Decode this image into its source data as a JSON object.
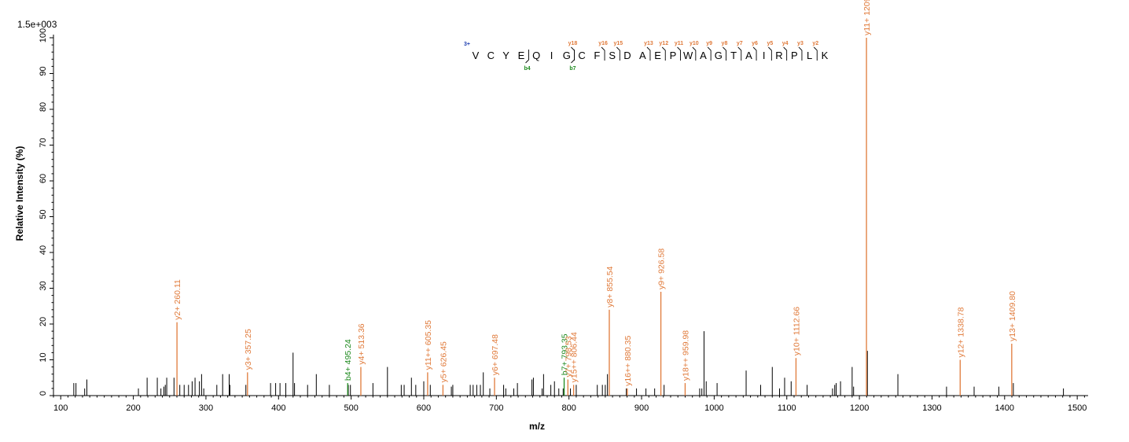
{
  "chart_data": {
    "type": "bar",
    "subtype": "mass-spectrum",
    "scale_label": "1.5e+003",
    "xlabel": "m/z",
    "ylabel": "Relative   Intensity (%)",
    "xlim": [
      90,
      1515
    ],
    "ylim": [
      0,
      100
    ],
    "x_ticks": [
      100,
      200,
      300,
      400,
      500,
      600,
      700,
      800,
      900,
      1000,
      1100,
      1200,
      1300,
      1400,
      1500
    ],
    "y_ticks": [
      0,
      10,
      20,
      30,
      40,
      50,
      60,
      70,
      80,
      90,
      100
    ],
    "colors": {
      "y_ion": "#e07a3a",
      "b_ion": "#1f8a1f",
      "charge": "#1f3fb0",
      "other": "#000000"
    },
    "charge_state": "3+",
    "sequence": [
      "V",
      "C",
      "Y",
      "E",
      "Q",
      "I",
      "G",
      "C",
      "F",
      "S",
      "D",
      "A",
      "E",
      "P",
      "W",
      "A",
      "G",
      "T",
      "A",
      "I",
      "R",
      "P",
      "L",
      "K"
    ],
    "y_ion_marks": [
      {
        "after_index": 6,
        "label": "y18"
      },
      {
        "after_index": 8,
        "label": "y16"
      },
      {
        "after_index": 9,
        "label": "y15"
      },
      {
        "after_index": 11,
        "label": "y13"
      },
      {
        "after_index": 12,
        "label": "y12"
      },
      {
        "after_index": 13,
        "label": "y11"
      },
      {
        "after_index": 14,
        "label": "y10"
      },
      {
        "after_index": 15,
        "label": "y9"
      },
      {
        "after_index": 16,
        "label": "y8"
      },
      {
        "after_index": 17,
        "label": "y7"
      },
      {
        "after_index": 18,
        "label": "y6"
      },
      {
        "after_index": 19,
        "label": "y5"
      },
      {
        "after_index": 20,
        "label": "y4"
      },
      {
        "after_index": 21,
        "label": "y3"
      },
      {
        "after_index": 22,
        "label": "y2"
      }
    ],
    "b_ion_marks": [
      {
        "after_index": 3,
        "label": "b4"
      },
      {
        "after_index": 6,
        "label": "b7"
      }
    ],
    "annotated_peaks": [
      {
        "mz": 260.11,
        "intensity": 20.5,
        "label": "y2+ 260.11",
        "ion": "y"
      },
      {
        "mz": 357.25,
        "intensity": 6.5,
        "label": "y3+ 357.25",
        "ion": "y"
      },
      {
        "mz": 495.24,
        "intensity": 3.5,
        "label": "b4+ 495.24",
        "ion": "b"
      },
      {
        "mz": 513.36,
        "intensity": 8.0,
        "label": "y4+ 513.36",
        "ion": "y"
      },
      {
        "mz": 605.35,
        "intensity": 6.5,
        "label": "y11++ 605.35",
        "ion": "y"
      },
      {
        "mz": 626.45,
        "intensity": 3.0,
        "label": "y5+ 626.45",
        "ion": "y"
      },
      {
        "mz": 697.48,
        "intensity": 5.0,
        "label": "y6+ 697.48",
        "ion": "y"
      },
      {
        "mz": 793.35,
        "intensity": 5.0,
        "label": "b7+ 793.35",
        "ion": "b"
      },
      {
        "mz": 798.53,
        "intensity": 4.5,
        "label": "y7+ 798.53",
        "ion": "y"
      },
      {
        "mz": 806.44,
        "intensity": 3.0,
        "label": "y15++ 806.44",
        "ion": "y"
      },
      {
        "mz": 855.54,
        "intensity": 24.0,
        "label": "y8+ 855.54",
        "ion": "y"
      },
      {
        "mz": 880.35,
        "intensity": 2.0,
        "label": "y16++ 880.35",
        "ion": "y"
      },
      {
        "mz": 926.58,
        "intensity": 29.0,
        "label": "y9+ 926.58",
        "ion": "y"
      },
      {
        "mz": 959.98,
        "intensity": 3.5,
        "label": "y18++ 959.98",
        "ion": "y"
      },
      {
        "mz": 1112.66,
        "intensity": 10.5,
        "label": "y10+ 1112.66",
        "ion": "y"
      },
      {
        "mz": 1209.72,
        "intensity": 100,
        "label": "y11+ 1209.72",
        "ion": "y"
      },
      {
        "mz": 1338.78,
        "intensity": 10.0,
        "label": "y12+ 1338.78",
        "ion": "y"
      },
      {
        "mz": 1409.8,
        "intensity": 14.5,
        "label": "y13+ 1409.80",
        "ion": "y"
      }
    ],
    "other_peaks": [
      [
        118,
        3.5
      ],
      [
        121,
        3.5
      ],
      [
        133,
        2
      ],
      [
        136,
        4.5
      ],
      [
        207,
        2
      ],
      [
        219,
        5
      ],
      [
        233,
        5
      ],
      [
        238,
        2
      ],
      [
        242,
        2.5
      ],
      [
        244,
        3
      ],
      [
        246,
        5
      ],
      [
        256,
        5
      ],
      [
        264,
        3
      ],
      [
        270,
        3
      ],
      [
        276,
        3
      ],
      [
        281,
        4
      ],
      [
        285,
        5
      ],
      [
        291,
        4
      ],
      [
        294,
        6
      ],
      [
        297,
        2
      ],
      [
        315,
        3
      ],
      [
        323,
        6
      ],
      [
        332,
        6
      ],
      [
        333,
        3
      ],
      [
        355,
        3
      ],
      [
        389,
        3.5
      ],
      [
        396,
        3.5
      ],
      [
        402,
        3.5
      ],
      [
        410,
        3.5
      ],
      [
        420,
        12
      ],
      [
        422,
        3.5
      ],
      [
        440,
        3
      ],
      [
        452,
        6
      ],
      [
        470,
        3
      ],
      [
        496,
        3
      ],
      [
        499,
        3
      ],
      [
        530,
        3.5
      ],
      [
        550,
        8
      ],
      [
        569,
        3
      ],
      [
        573,
        3
      ],
      [
        583,
        5
      ],
      [
        589,
        3
      ],
      [
        600,
        4
      ],
      [
        609,
        3
      ],
      [
        638,
        2.5
      ],
      [
        640,
        3
      ],
      [
        664,
        3
      ],
      [
        668,
        3
      ],
      [
        673,
        3
      ],
      [
        678,
        3
      ],
      [
        682,
        6.5
      ],
      [
        691,
        2
      ],
      [
        710,
        3
      ],
      [
        713,
        2
      ],
      [
        724,
        2
      ],
      [
        729,
        3.5
      ],
      [
        749,
        4.5
      ],
      [
        751,
        5
      ],
      [
        763,
        2
      ],
      [
        765,
        6
      ],
      [
        775,
        3
      ],
      [
        780,
        4
      ],
      [
        786,
        2
      ],
      [
        792,
        2
      ],
      [
        802,
        2
      ],
      [
        810,
        3
      ],
      [
        839,
        3
      ],
      [
        846,
        3
      ],
      [
        850,
        3
      ],
      [
        853,
        6
      ],
      [
        879,
        2
      ],
      [
        893,
        2
      ],
      [
        906,
        2
      ],
      [
        918,
        2
      ],
      [
        931,
        3
      ],
      [
        980,
        2
      ],
      [
        983,
        2
      ],
      [
        986,
        18
      ],
      [
        989,
        4
      ],
      [
        1004,
        3.5
      ],
      [
        1044,
        7
      ],
      [
        1064,
        3
      ],
      [
        1080,
        8
      ],
      [
        1090,
        2
      ],
      [
        1097,
        5
      ],
      [
        1106,
        4
      ],
      [
        1128,
        3
      ],
      [
        1163,
        2
      ],
      [
        1166,
        3
      ],
      [
        1168,
        3.5
      ],
      [
        1174,
        4
      ],
      [
        1190,
        8
      ],
      [
        1192,
        2.5
      ],
      [
        1211,
        12.5
      ],
      [
        1253,
        6
      ],
      [
        1320,
        2.5
      ],
      [
        1358,
        2.5
      ],
      [
        1392,
        2.5
      ],
      [
        1412,
        3.5
      ],
      [
        1481,
        2
      ]
    ]
  }
}
